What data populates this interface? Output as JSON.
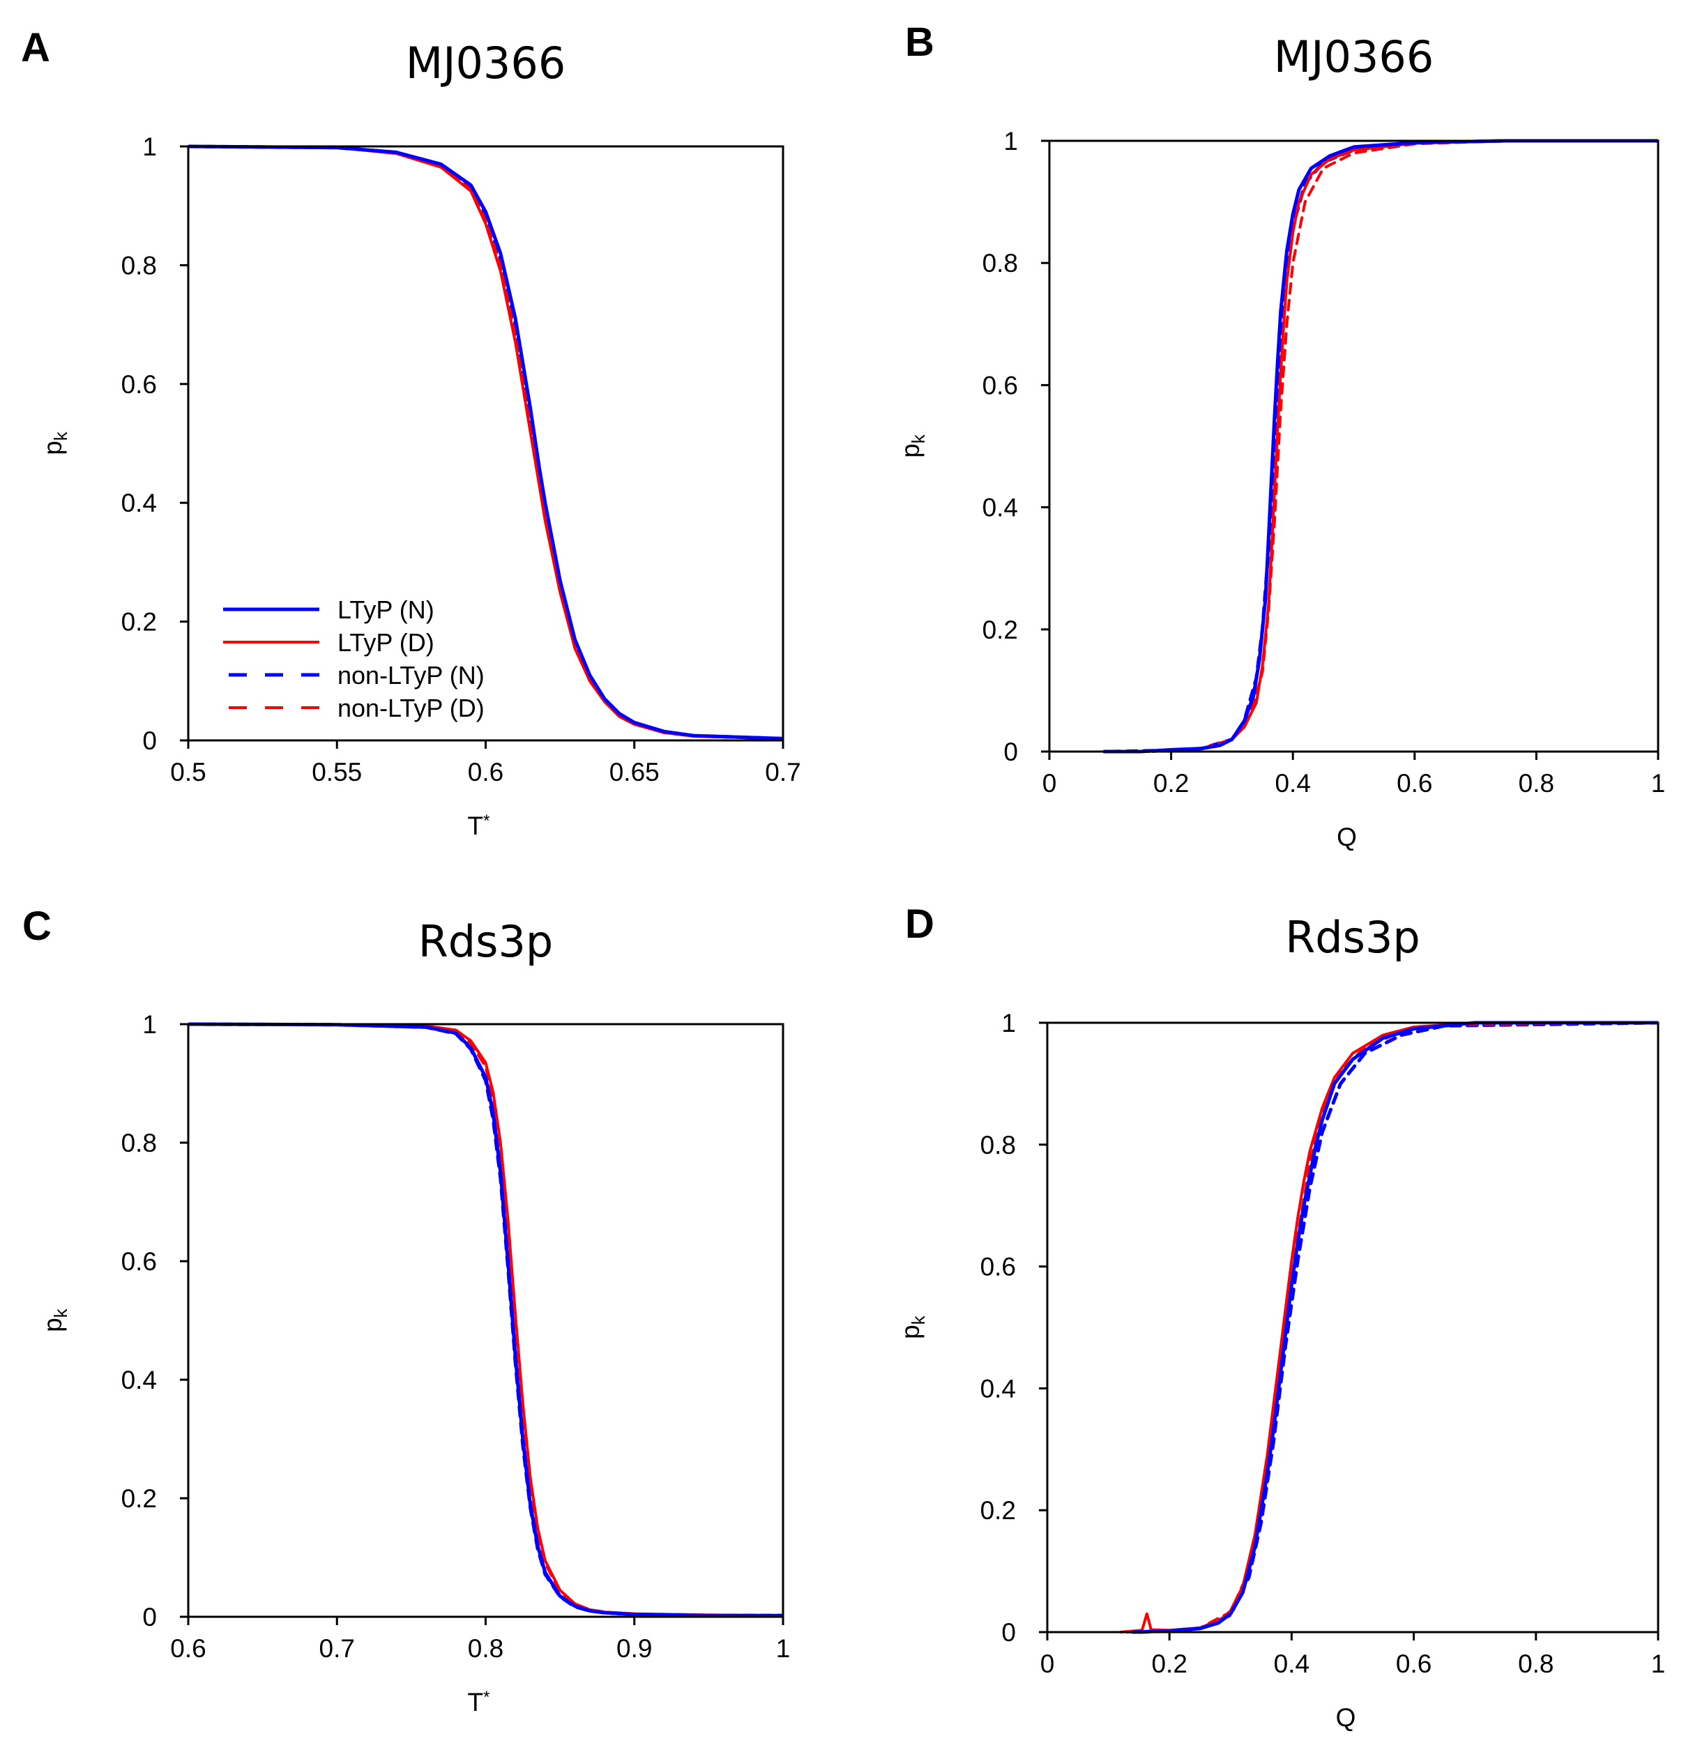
{
  "chart_data": [
    {
      "type": "line",
      "panel": "A",
      "title": "MJ0366",
      "xlabel": "T*",
      "ylabel": "pk",
      "xlim": [
        0.5,
        0.7
      ],
      "ylim": [
        0,
        1
      ],
      "xticks": [
        "0.5",
        "0.55",
        "0.6",
        "0.65",
        "0.7"
      ],
      "yticks": [
        "0",
        "0.2",
        "0.4",
        "0.6",
        "0.8",
        "1"
      ],
      "legend": "inside lower-left",
      "series": [
        {
          "name": "LTyP (N)",
          "color": "#0000ff",
          "dash": "solid",
          "x": [
            0.5,
            0.55,
            0.57,
            0.585,
            0.595,
            0.6,
            0.605,
            0.61,
            0.615,
            0.618,
            0.62,
            0.625,
            0.63,
            0.635,
            0.64,
            0.645,
            0.65,
            0.66,
            0.67,
            0.7
          ],
          "y": [
            1.0,
            0.998,
            0.99,
            0.97,
            0.935,
            0.89,
            0.82,
            0.71,
            0.56,
            0.46,
            0.4,
            0.27,
            0.17,
            0.11,
            0.07,
            0.045,
            0.03,
            0.015,
            0.008,
            0.003
          ]
        },
        {
          "name": "LTyP (D)",
          "color": "#ff0000",
          "dash": "solid",
          "x": [
            0.5,
            0.55,
            0.57,
            0.585,
            0.595,
            0.6,
            0.605,
            0.61,
            0.615,
            0.618,
            0.62,
            0.625,
            0.63,
            0.635,
            0.64,
            0.645,
            0.65,
            0.66,
            0.67,
            0.7
          ],
          "y": [
            1.0,
            0.998,
            0.988,
            0.965,
            0.925,
            0.87,
            0.79,
            0.67,
            0.52,
            0.43,
            0.37,
            0.25,
            0.155,
            0.1,
            0.065,
            0.04,
            0.027,
            0.013,
            0.007,
            0.003
          ]
        },
        {
          "name": "non-LTyP (N)",
          "color": "#0000ff",
          "dash": "dashed",
          "x": [
            0.5,
            0.55,
            0.57,
            0.585,
            0.595,
            0.6,
            0.605,
            0.61,
            0.615,
            0.618,
            0.62,
            0.625,
            0.63,
            0.635,
            0.64,
            0.645,
            0.65,
            0.66,
            0.67,
            0.7
          ],
          "y": [
            1.0,
            0.998,
            0.99,
            0.968,
            0.932,
            0.885,
            0.81,
            0.7,
            0.55,
            0.45,
            0.39,
            0.265,
            0.165,
            0.108,
            0.068,
            0.044,
            0.029,
            0.014,
            0.008,
            0.003
          ]
        },
        {
          "name": "non-LTyP (D)",
          "color": "#ff0000",
          "dash": "dashed",
          "x": [
            0.5,
            0.55,
            0.57,
            0.585,
            0.595,
            0.6,
            0.605,
            0.61,
            0.615,
            0.618,
            0.62,
            0.625,
            0.63,
            0.635,
            0.64,
            0.645,
            0.65,
            0.66,
            0.67,
            0.7
          ],
          "y": [
            1.0,
            0.998,
            0.989,
            0.966,
            0.928,
            0.875,
            0.8,
            0.68,
            0.53,
            0.44,
            0.38,
            0.255,
            0.16,
            0.104,
            0.066,
            0.042,
            0.028,
            0.013,
            0.007,
            0.003
          ]
        }
      ]
    },
    {
      "type": "line",
      "panel": "B",
      "title": "MJ0366",
      "xlabel": "Q",
      "ylabel": "pk",
      "xlim": [
        0,
        1
      ],
      "ylim": [
        0,
        1
      ],
      "xticks": [
        "0",
        "0.2",
        "0.4",
        "0.6",
        "0.8",
        "1"
      ],
      "yticks": [
        "0",
        "0.2",
        "0.4",
        "0.6",
        "0.8",
        "1"
      ],
      "series": [
        {
          "name": "LTyP (N)",
          "color": "#0000ff",
          "dash": "solid",
          "x": [
            0.09,
            0.15,
            0.2,
            0.25,
            0.28,
            0.3,
            0.32,
            0.335,
            0.345,
            0.355,
            0.36,
            0.365,
            0.37,
            0.375,
            0.38,
            0.39,
            0.4,
            0.41,
            0.43,
            0.46,
            0.5,
            0.6,
            0.75,
            1.0
          ],
          "y": [
            0.0,
            0.0,
            0.003,
            0.005,
            0.01,
            0.02,
            0.05,
            0.09,
            0.15,
            0.25,
            0.35,
            0.45,
            0.55,
            0.64,
            0.72,
            0.82,
            0.88,
            0.92,
            0.955,
            0.975,
            0.99,
            0.997,
            1.0,
            1.0
          ]
        },
        {
          "name": "LTyP (D)",
          "color": "#ff0000",
          "dash": "solid",
          "x": [
            0.16,
            0.2,
            0.25,
            0.28,
            0.3,
            0.32,
            0.34,
            0.35,
            0.36,
            0.365,
            0.37,
            0.375,
            0.38,
            0.385,
            0.39,
            0.4,
            0.41,
            0.43,
            0.46,
            0.5,
            0.6,
            0.75,
            1.0
          ],
          "y": [
            0.0,
            0.003,
            0.005,
            0.01,
            0.02,
            0.04,
            0.08,
            0.14,
            0.24,
            0.33,
            0.43,
            0.53,
            0.62,
            0.7,
            0.77,
            0.85,
            0.9,
            0.945,
            0.97,
            0.985,
            0.996,
            1.0,
            1.0
          ]
        },
        {
          "name": "non-LTyP (N)",
          "color": "#0000ff",
          "dash": "dashed",
          "x": [
            0.1,
            0.2,
            0.25,
            0.3,
            0.32,
            0.34,
            0.35,
            0.36,
            0.37,
            0.38,
            0.39,
            0.4,
            0.42,
            0.45,
            0.5,
            0.6,
            0.75,
            1.0
          ],
          "y": [
            0.0,
            0.002,
            0.005,
            0.02,
            0.05,
            0.12,
            0.2,
            0.33,
            0.5,
            0.66,
            0.78,
            0.86,
            0.93,
            0.965,
            0.985,
            0.997,
            1.0,
            1.0
          ]
        },
        {
          "name": "non-LTyP (D)",
          "color": "#ff0000",
          "dash": "dashed",
          "x": [
            0.17,
            0.2,
            0.25,
            0.3,
            0.33,
            0.35,
            0.36,
            0.37,
            0.38,
            0.39,
            0.4,
            0.42,
            0.45,
            0.5,
            0.6,
            0.75,
            1.0
          ],
          "y": [
            0.0,
            0.002,
            0.005,
            0.02,
            0.06,
            0.13,
            0.23,
            0.38,
            0.56,
            0.7,
            0.8,
            0.9,
            0.955,
            0.98,
            0.995,
            1.0,
            1.0
          ]
        }
      ]
    },
    {
      "type": "line",
      "panel": "C",
      "title": "Rds3p",
      "xlabel": "T*",
      "ylabel": "pk",
      "xlim": [
        0.6,
        1
      ],
      "ylim": [
        0,
        1
      ],
      "xticks": [
        "0.6",
        "0.7",
        "0.8",
        "0.9",
        "1"
      ],
      "yticks": [
        "0",
        "0.2",
        "0.4",
        "0.6",
        "0.8",
        "1"
      ],
      "series": [
        {
          "name": "LTyP (N)",
          "color": "#0000ff",
          "dash": "solid",
          "x": [
            0.6,
            0.7,
            0.76,
            0.78,
            0.79,
            0.8,
            0.805,
            0.81,
            0.815,
            0.82,
            0.825,
            0.83,
            0.835,
            0.84,
            0.85,
            0.86,
            0.87,
            0.88,
            0.9,
            0.95,
            1.0
          ],
          "y": [
            1.0,
            0.999,
            0.995,
            0.985,
            0.96,
            0.91,
            0.85,
            0.75,
            0.6,
            0.44,
            0.3,
            0.19,
            0.12,
            0.075,
            0.035,
            0.018,
            0.01,
            0.007,
            0.004,
            0.002,
            0.002
          ]
        },
        {
          "name": "LTyP (D)",
          "color": "#ff0000",
          "dash": "solid",
          "x": [
            0.6,
            0.7,
            0.76,
            0.78,
            0.79,
            0.8,
            0.805,
            0.81,
            0.815,
            0.82,
            0.825,
            0.83,
            0.835,
            0.84,
            0.85,
            0.86,
            0.87,
            0.88,
            0.9,
            0.95,
            1.0
          ],
          "y": [
            1.0,
            0.999,
            0.997,
            0.99,
            0.972,
            0.935,
            0.885,
            0.8,
            0.67,
            0.51,
            0.36,
            0.235,
            0.15,
            0.095,
            0.045,
            0.022,
            0.012,
            0.008,
            0.005,
            0.003,
            0.002
          ]
        },
        {
          "name": "non-LTyP (N)",
          "color": "#0000ff",
          "dash": "dashed",
          "x": [
            0.6,
            0.7,
            0.76,
            0.78,
            0.79,
            0.8,
            0.805,
            0.81,
            0.815,
            0.82,
            0.825,
            0.83,
            0.835,
            0.84,
            0.85,
            0.86,
            0.87,
            0.88,
            0.9,
            0.95,
            1.0
          ],
          "y": [
            1.0,
            0.999,
            0.995,
            0.984,
            0.958,
            0.905,
            0.84,
            0.74,
            0.59,
            0.43,
            0.29,
            0.185,
            0.115,
            0.072,
            0.034,
            0.017,
            0.01,
            0.007,
            0.004,
            0.002,
            0.002
          ]
        },
        {
          "name": "non-LTyP (D)",
          "color": "#ff0000",
          "dash": "dashed",
          "x": [
            0.6,
            0.7,
            0.76,
            0.78,
            0.79,
            0.8,
            0.805,
            0.81,
            0.815,
            0.82,
            0.825,
            0.83,
            0.835,
            0.84,
            0.85,
            0.86,
            0.87,
            0.88,
            0.9,
            0.95,
            1.0
          ],
          "y": [
            1.0,
            0.999,
            0.996,
            0.988,
            0.968,
            0.928,
            0.875,
            0.785,
            0.65,
            0.49,
            0.345,
            0.225,
            0.143,
            0.09,
            0.043,
            0.021,
            0.012,
            0.008,
            0.005,
            0.003,
            0.002
          ]
        }
      ]
    },
    {
      "type": "line",
      "panel": "D",
      "title": "Rds3p",
      "xlabel": "Q",
      "ylabel": "pk",
      "xlim": [
        0,
        1
      ],
      "ylim": [
        0,
        1
      ],
      "xticks": [
        "0",
        "0.2",
        "0.4",
        "0.6",
        "0.8",
        "1"
      ],
      "yticks": [
        "0",
        "0.2",
        "0.4",
        "0.6",
        "0.8",
        "1"
      ],
      "series": [
        {
          "name": "LTyP (N)",
          "color": "#0000ff",
          "dash": "solid",
          "x": [
            0.14,
            0.2,
            0.25,
            0.28,
            0.3,
            0.32,
            0.34,
            0.36,
            0.37,
            0.38,
            0.39,
            0.4,
            0.41,
            0.42,
            0.43,
            0.44,
            0.45,
            0.47,
            0.5,
            0.55,
            0.6,
            0.7,
            1.0
          ],
          "y": [
            0.0,
            0.002,
            0.006,
            0.015,
            0.03,
            0.065,
            0.14,
            0.26,
            0.33,
            0.41,
            0.49,
            0.57,
            0.64,
            0.7,
            0.75,
            0.8,
            0.84,
            0.9,
            0.94,
            0.975,
            0.99,
            1.0,
            1.0
          ]
        },
        {
          "name": "LTyP (D)",
          "color": "#ff0000",
          "dash": "solid",
          "x": [
            0.12,
            0.155,
            0.163,
            0.17,
            0.2,
            0.25,
            0.28,
            0.3,
            0.32,
            0.34,
            0.36,
            0.37,
            0.38,
            0.39,
            0.4,
            0.41,
            0.42,
            0.43,
            0.45,
            0.47,
            0.5,
            0.55,
            0.6,
            0.7,
            1.0
          ],
          "y": [
            0.0,
            0.003,
            0.03,
            0.004,
            0.003,
            0.007,
            0.017,
            0.035,
            0.075,
            0.16,
            0.29,
            0.37,
            0.45,
            0.53,
            0.61,
            0.68,
            0.74,
            0.79,
            0.86,
            0.91,
            0.95,
            0.98,
            0.993,
            1.0,
            1.0
          ]
        },
        {
          "name": "non-LTyP (N)",
          "color": "#0000ff",
          "dash": "dashed",
          "x": [
            0.15,
            0.2,
            0.25,
            0.3,
            0.33,
            0.35,
            0.37,
            0.39,
            0.41,
            0.43,
            0.45,
            0.48,
            0.52,
            0.58,
            0.65,
            1.0
          ],
          "y": [
            0.0,
            0.002,
            0.006,
            0.028,
            0.09,
            0.18,
            0.31,
            0.47,
            0.61,
            0.73,
            0.82,
            0.9,
            0.95,
            0.98,
            0.995,
            1.0
          ]
        },
        {
          "name": "non-LTyP (D)",
          "color": "#ff0000",
          "dash": "dashed",
          "x": [
            0.13,
            0.2,
            0.25,
            0.3,
            0.33,
            0.35,
            0.37,
            0.39,
            0.41,
            0.43,
            0.45,
            0.48,
            0.52,
            0.58,
            0.65,
            1.0
          ],
          "y": [
            0.0,
            0.003,
            0.007,
            0.033,
            0.1,
            0.2,
            0.34,
            0.5,
            0.65,
            0.77,
            0.85,
            0.92,
            0.96,
            0.985,
            0.997,
            1.0
          ]
        }
      ]
    }
  ]
}
